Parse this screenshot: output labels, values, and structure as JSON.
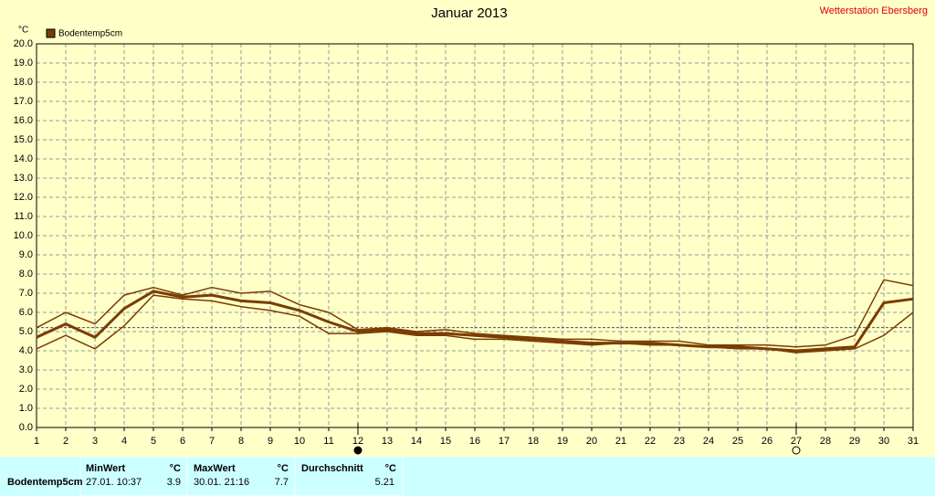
{
  "chart_data": {
    "type": "line",
    "title": "Januar 2013",
    "station": "Wetterstation Ebersberg",
    "y_label": "°C",
    "x": [
      1,
      2,
      3,
      4,
      5,
      6,
      7,
      8,
      9,
      10,
      11,
      12,
      13,
      14,
      15,
      16,
      17,
      18,
      19,
      20,
      21,
      22,
      23,
      24,
      25,
      26,
      27,
      28,
      29,
      30,
      31
    ],
    "xlim": [
      1,
      31
    ],
    "ylim": [
      0,
      20
    ],
    "yticks": [
      {
        "value": 0,
        "label": "0.0"
      },
      {
        "value": 1,
        "label": "1.0"
      },
      {
        "value": 2,
        "label": "2.0"
      },
      {
        "value": 3,
        "label": "3.0"
      },
      {
        "value": 4,
        "label": "4.0"
      },
      {
        "value": 5,
        "label": "5.0"
      },
      {
        "value": 6,
        "label": "6.0"
      },
      {
        "value": 7,
        "label": "7.0"
      },
      {
        "value": 8,
        "label": "8.0"
      },
      {
        "value": 9,
        "label": "9.0"
      },
      {
        "value": 10,
        "label": "10.0"
      },
      {
        "value": 11,
        "label": "11.0"
      },
      {
        "value": 12,
        "label": "12.0"
      },
      {
        "value": 13,
        "label": "13.0"
      },
      {
        "value": 14,
        "label": "14.0"
      },
      {
        "value": 15,
        "label": "15.0"
      },
      {
        "value": 16,
        "label": "16.0"
      },
      {
        "value": 17,
        "label": "17.0"
      },
      {
        "value": 18,
        "label": "18.0"
      },
      {
        "value": 19,
        "label": "19.0"
      },
      {
        "value": 20,
        "label": "20.0"
      }
    ],
    "grid": true,
    "moon_markers": [
      12,
      27
    ],
    "series": [
      {
        "name": "Bodentemp5cm",
        "color": "#7a3c00",
        "values": [
          4.7,
          5.4,
          4.7,
          6.2,
          7.1,
          6.8,
          6.9,
          6.6,
          6.5,
          6.1,
          5.5,
          5.0,
          5.1,
          4.9,
          4.9,
          4.8,
          4.7,
          4.6,
          4.5,
          4.4,
          4.4,
          4.4,
          4.3,
          4.2,
          4.2,
          4.1,
          4.0,
          4.1,
          4.2,
          6.5,
          6.7
        ],
        "max": [
          5.2,
          6.0,
          5.4,
          6.9,
          7.3,
          6.9,
          7.3,
          7.0,
          7.1,
          6.4,
          6.0,
          5.1,
          5.2,
          5.0,
          5.1,
          4.9,
          4.8,
          4.7,
          4.6,
          4.6,
          4.5,
          4.5,
          4.5,
          4.3,
          4.3,
          4.3,
          4.2,
          4.3,
          4.8,
          7.7,
          7.4
        ],
        "min": [
          4.1,
          4.8,
          4.1,
          5.3,
          6.9,
          6.7,
          6.6,
          6.3,
          6.1,
          5.8,
          4.9,
          4.9,
          5.0,
          4.8,
          4.8,
          4.6,
          4.6,
          4.5,
          4.4,
          4.3,
          4.4,
          4.3,
          4.3,
          4.2,
          4.1,
          4.1,
          3.9,
          4.0,
          4.1,
          4.8,
          6.0
        ]
      }
    ]
  },
  "table": {
    "headers": [
      "MinWert",
      "°C",
      "MaxWert",
      "°C",
      "Durchschnitt",
      "°C"
    ],
    "rows": [
      [
        "Bodentemp5cm",
        "27.01.  10:37",
        3.9,
        "30.01.  21:16",
        7.7,
        5.21
      ]
    ]
  }
}
